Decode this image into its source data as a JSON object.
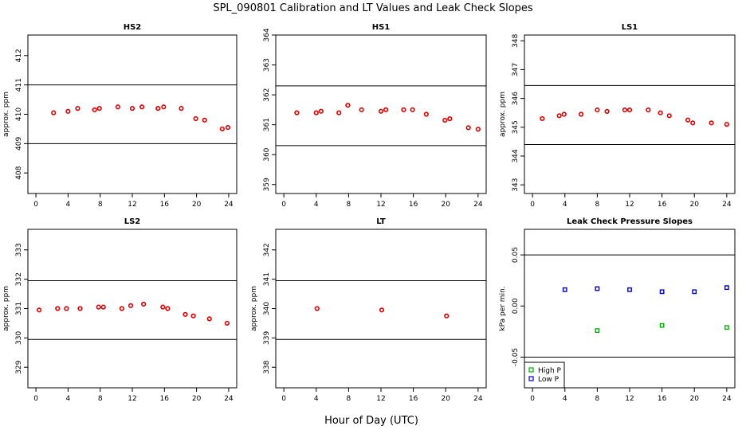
{
  "figure": {
    "title": "SPL_090801  Calibration and LT Values and Leak Check Slopes",
    "xlabel": "Hour of Day (UTC)"
  },
  "colors": {
    "red": "#e00000",
    "green": "#00b000",
    "blue": "#0000cc",
    "axis": "#000000"
  },
  "chart_data": [
    {
      "type": "scatter",
      "title": "HS2",
      "ylabel": "approx. ppm",
      "xlim": [
        -1,
        25
      ],
      "ylim": [
        407.3,
        412.7
      ],
      "xticks": [
        "0",
        "4",
        "8",
        "12",
        "16",
        "20",
        "24"
      ],
      "yticks": [
        "408",
        "409",
        "410",
        "411",
        "412"
      ],
      "hlines": [
        409.0,
        411.0
      ],
      "series": [
        {
          "color": "red",
          "marker": "circle",
          "x": [
            2.2,
            4.0,
            5.2,
            7.3,
            7.9,
            10.2,
            12.0,
            13.2,
            15.2,
            15.9,
            18.1,
            19.9,
            21.0,
            23.2,
            23.9
          ],
          "y": [
            410.05,
            410.1,
            410.2,
            410.15,
            410.2,
            410.25,
            410.2,
            410.25,
            410.2,
            410.25,
            410.2,
            409.85,
            409.8,
            409.5,
            409.55
          ]
        }
      ]
    },
    {
      "type": "scatter",
      "title": "HS1",
      "ylabel": "",
      "xlim": [
        -1,
        25
      ],
      "ylim": [
        358.7,
        364.0
      ],
      "xticks": [
        "0",
        "4",
        "8",
        "12",
        "16",
        "20",
        "24"
      ],
      "yticks": [
        "359",
        "360",
        "361",
        "362",
        "363",
        "364"
      ],
      "hlines": [
        360.3,
        362.3
      ],
      "series": [
        {
          "color": "red",
          "marker": "circle",
          "x": [
            1.6,
            4.0,
            4.6,
            6.8,
            7.9,
            9.6,
            12.0,
            12.6,
            14.8,
            15.9,
            17.6,
            19.9,
            20.5,
            22.8,
            24.0
          ],
          "y": [
            361.4,
            361.4,
            361.45,
            361.4,
            361.65,
            361.5,
            361.45,
            361.5,
            361.5,
            361.5,
            361.35,
            361.15,
            361.2,
            360.9,
            360.85
          ]
        }
      ]
    },
    {
      "type": "scatter",
      "title": "LS1",
      "ylabel": "approx. ppm",
      "xlim": [
        -1,
        25
      ],
      "ylim": [
        342.7,
        348.2
      ],
      "xticks": [
        "0",
        "4",
        "8",
        "12",
        "16",
        "20",
        "24"
      ],
      "yticks": [
        "343",
        "344",
        "345",
        "346",
        "347",
        "348"
      ],
      "hlines": [
        344.4,
        346.45
      ],
      "series": [
        {
          "color": "red",
          "marker": "circle",
          "x": [
            1.2,
            3.3,
            3.9,
            6.0,
            8.0,
            9.2,
            11.4,
            12.0,
            14.3,
            15.8,
            16.9,
            19.2,
            19.8,
            22.1,
            24.0
          ],
          "y": [
            345.3,
            345.4,
            345.45,
            345.45,
            345.6,
            345.55,
            345.6,
            345.6,
            345.6,
            345.5,
            345.4,
            345.25,
            345.15,
            345.15,
            345.1
          ]
        }
      ]
    },
    {
      "type": "scatter",
      "title": "LS2",
      "ylabel": "approx. ppm",
      "xlim": [
        -1,
        25
      ],
      "ylim": [
        328.3,
        333.7
      ],
      "xticks": [
        "0",
        "4",
        "8",
        "12",
        "16",
        "20",
        "24"
      ],
      "yticks": [
        "329",
        "330",
        "331",
        "332",
        "333"
      ],
      "hlines": [
        329.95,
        331.95
      ],
      "series": [
        {
          "color": "red",
          "marker": "circle",
          "x": [
            0.4,
            2.7,
            3.8,
            5.5,
            7.8,
            8.4,
            10.7,
            11.8,
            13.4,
            15.8,
            16.4,
            18.6,
            19.6,
            21.6,
            23.8
          ],
          "y": [
            330.95,
            331.0,
            331.0,
            331.0,
            331.05,
            331.05,
            331.0,
            331.1,
            331.15,
            331.05,
            331.0,
            330.8,
            330.75,
            330.65,
            330.5
          ]
        }
      ]
    },
    {
      "type": "scatter",
      "title": "LT",
      "ylabel": "approx. ppm",
      "xlim": [
        -1,
        25
      ],
      "ylim": [
        337.3,
        342.7
      ],
      "xticks": [
        "0",
        "4",
        "8",
        "12",
        "16",
        "20",
        "24"
      ],
      "yticks": [
        "338",
        "339",
        "340",
        "341",
        "342"
      ],
      "hlines": [
        338.95,
        340.95
      ],
      "series": [
        {
          "color": "red",
          "marker": "circle",
          "x": [
            4.1,
            12.1,
            20.1
          ],
          "y": [
            340.0,
            339.95,
            339.75
          ]
        }
      ]
    },
    {
      "type": "scatter",
      "title": "Leak Check Pressure Slopes",
      "ylabel": "kPa per min.",
      "xlim": [
        -1,
        25
      ],
      "ylim": [
        -0.08,
        0.075
      ],
      "xticks": [
        "0",
        "4",
        "8",
        "12",
        "16",
        "20",
        "24"
      ],
      "yticks": [
        "-0.05",
        "0.00",
        "0.05"
      ],
      "yticks_values": [
        -0.05,
        0.0,
        0.05
      ],
      "hlines": [
        -0.05,
        0.05
      ],
      "legend": {
        "position": "bottom-left",
        "entries": [
          {
            "label": "High P",
            "color": "green"
          },
          {
            "label": "Low P",
            "color": "blue"
          }
        ]
      },
      "series": [
        {
          "name": "High P",
          "color": "green",
          "marker": "square",
          "x": [
            8.0,
            16.0,
            24.0
          ],
          "y": [
            -0.024,
            -0.019,
            -0.021
          ]
        },
        {
          "name": "Low P",
          "color": "blue",
          "marker": "square",
          "x": [
            4.0,
            8.0,
            12.0,
            16.0,
            20.0,
            24.0
          ],
          "y": [
            0.016,
            0.017,
            0.016,
            0.014,
            0.014,
            0.018
          ]
        }
      ]
    }
  ]
}
